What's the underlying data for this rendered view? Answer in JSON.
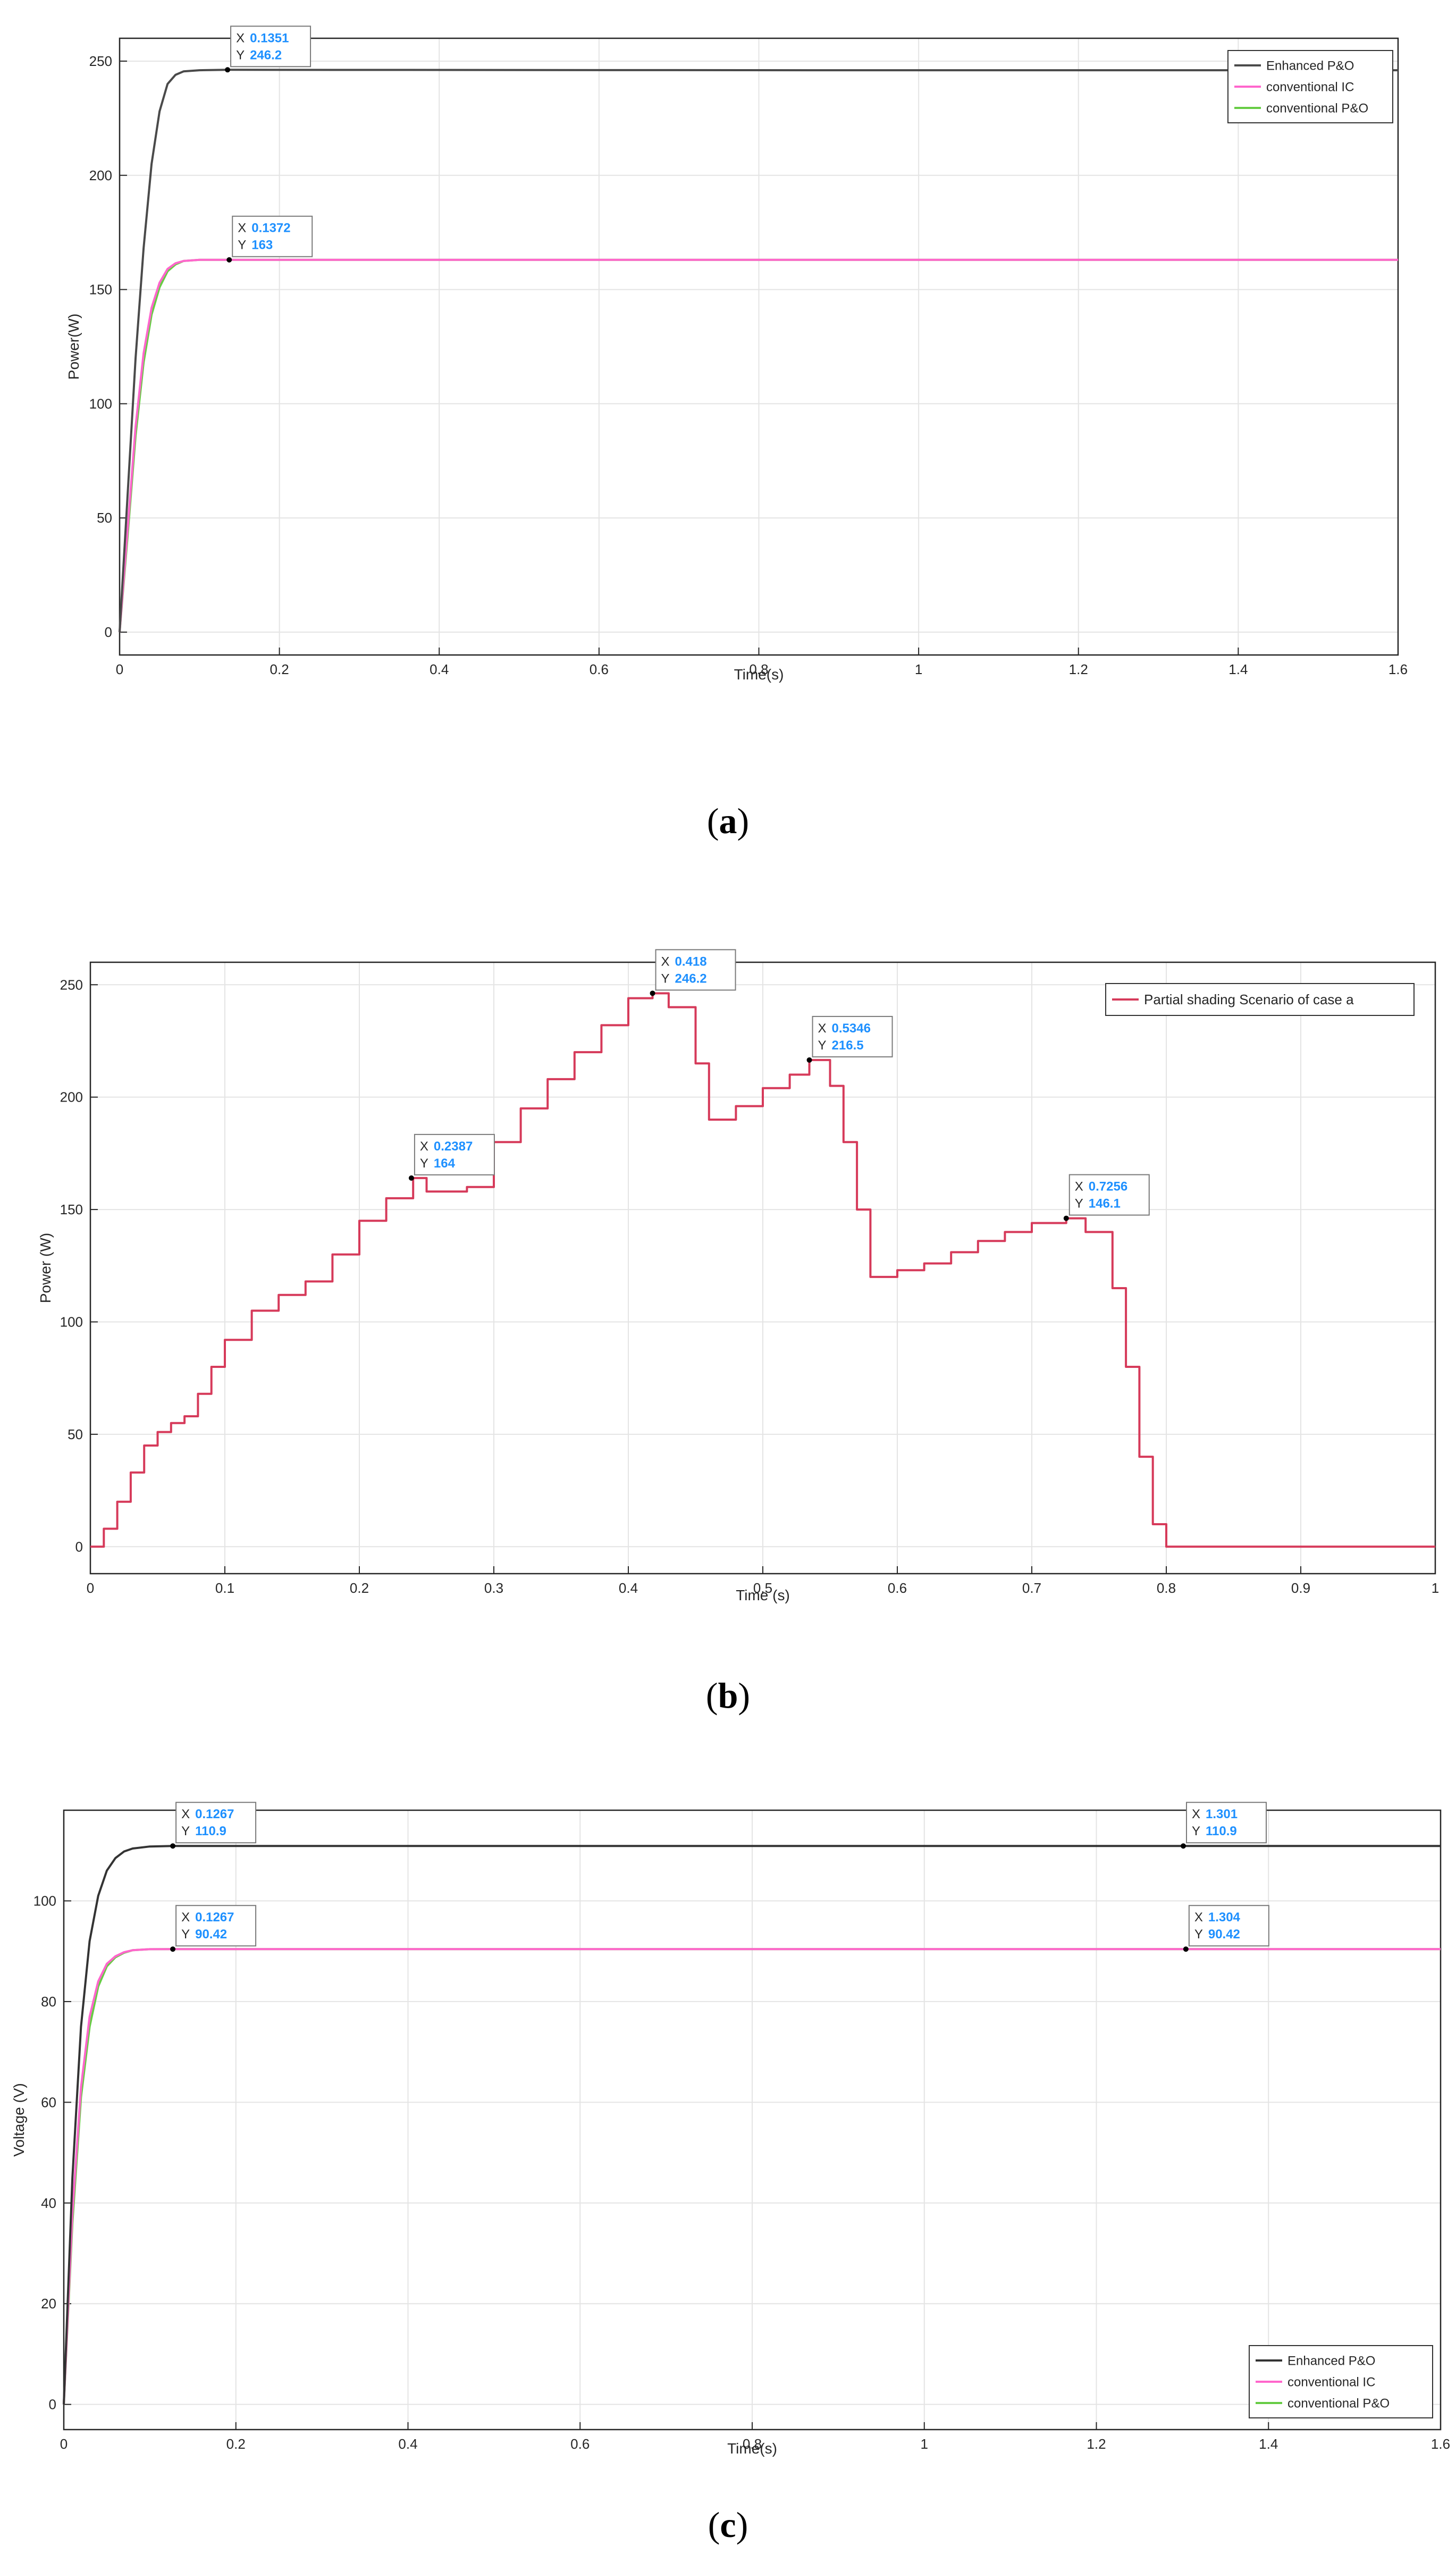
{
  "figures": [
    {
      "caption_open": "(",
      "caption_letter": "a",
      "caption_close": ")"
    },
    {
      "caption_open": "(",
      "caption_letter": "b",
      "caption_close": ")"
    },
    {
      "caption_open": "(",
      "caption_letter": "c",
      "caption_close": ")"
    }
  ],
  "chart_data": [
    {
      "type": "line",
      "title": "",
      "xlabel": "Time(s)",
      "ylabel": "Power(W)",
      "xlim": [
        0,
        1.6
      ],
      "ylim": [
        -10,
        260
      ],
      "xticks": [
        0,
        0.2,
        0.4,
        0.6,
        0.8,
        1,
        1.2,
        1.4,
        1.6
      ],
      "xtick_labels": [
        "0",
        "0.2",
        "0.4",
        "0.6",
        "0.8",
        "1",
        "1.2",
        "1.4",
        "1.6"
      ],
      "yticks": [
        0,
        50,
        100,
        150,
        200,
        250
      ],
      "ytick_labels": [
        "0",
        "50",
        "100",
        "150",
        "200",
        "250"
      ],
      "grid": true,
      "legend_position": "top-right",
      "series": [
        {
          "name": "Enhanced P&O",
          "color": "#4a4a4a",
          "x": [
            0,
            0.01,
            0.02,
            0.03,
            0.04,
            0.05,
            0.06,
            0.07,
            0.08,
            0.1,
            0.1351,
            0.9,
            1.6
          ],
          "y": [
            0,
            60,
            120,
            168,
            205,
            228,
            240,
            244,
            245.5,
            246,
            246.2,
            246,
            246
          ]
        },
        {
          "name": "conventional IC",
          "color": "#ff66cc",
          "x": [
            0,
            0.01,
            0.02,
            0.03,
            0.04,
            0.05,
            0.06,
            0.07,
            0.08,
            0.1,
            0.1372,
            1.6
          ],
          "y": [
            0,
            45,
            90,
            122,
            142,
            153,
            159,
            161.5,
            162.5,
            163,
            163,
            163
          ]
        },
        {
          "name": "conventional P&O",
          "color": "#66cc44",
          "x": [
            0,
            0.01,
            0.02,
            0.03,
            0.04,
            0.05,
            0.06,
            0.07,
            0.08,
            0.1,
            0.1372,
            1.6
          ],
          "y": [
            0,
            42,
            86,
            118,
            139,
            151,
            158,
            161,
            162.5,
            163,
            163,
            163
          ]
        }
      ],
      "annotations": [
        {
          "x": 0.1351,
          "y": 246.2,
          "x_label": "X",
          "x_text": "0.1351",
          "y_label": "Y",
          "y_text": "246.2"
        },
        {
          "x": 0.1372,
          "y": 163,
          "x_label": "X",
          "x_text": "0.1372",
          "y_label": "Y",
          "y_text": "163"
        }
      ]
    },
    {
      "type": "line",
      "title": "",
      "xlabel": "Time (s)",
      "ylabel": "Power (W)",
      "xlim": [
        0,
        1
      ],
      "ylim": [
        -12,
        260
      ],
      "xticks": [
        0,
        0.1,
        0.2,
        0.3,
        0.4,
        0.5,
        0.6,
        0.7,
        0.8,
        0.9,
        1
      ],
      "xtick_labels": [
        "0",
        "0.1",
        "0.2",
        "0.3",
        "0.4",
        "0.5",
        "0.6",
        "0.7",
        "0.8",
        "0.9",
        "1"
      ],
      "yticks": [
        0,
        50,
        100,
        150,
        200,
        250
      ],
      "ytick_labels": [
        "0",
        "50",
        "100",
        "150",
        "200",
        "250"
      ],
      "grid": true,
      "legend_position": "top-right",
      "series": [
        {
          "name": "Partial shading Scenario of case a",
          "color": "#d63a5a",
          "x": [
            0,
            0.01,
            0.02,
            0.03,
            0.04,
            0.05,
            0.06,
            0.07,
            0.08,
            0.09,
            0.1,
            0.12,
            0.14,
            0.15,
            0.16,
            0.18,
            0.2,
            0.22,
            0.24,
            0.25,
            0.26,
            0.28,
            0.3,
            0.32,
            0.34,
            0.36,
            0.38,
            0.4,
            0.418,
            0.43,
            0.45,
            0.46,
            0.48,
            0.5,
            0.52,
            0.5346,
            0.55,
            0.56,
            0.57,
            0.58,
            0.6,
            0.62,
            0.64,
            0.66,
            0.68,
            0.7,
            0.7256,
            0.74,
            0.76,
            0.77,
            0.78,
            0.79,
            0.8,
            0.85,
            0.9,
            0.95,
            1
          ],
          "y": [
            0,
            8,
            20,
            33,
            45,
            51,
            55,
            58,
            68,
            80,
            92,
            105,
            112,
            112,
            118,
            130,
            145,
            155,
            164,
            158,
            158,
            160,
            180,
            195,
            208,
            220,
            232,
            244,
            246.2,
            240,
            215,
            190,
            196,
            204,
            210,
            216.5,
            205,
            180,
            150,
            120,
            123,
            126,
            131,
            136,
            140,
            144,
            146.1,
            140,
            115,
            80,
            40,
            10,
            0,
            0,
            0,
            0,
            0
          ]
        }
      ],
      "annotations": [
        {
          "x": 0.2387,
          "y": 164,
          "x_label": "X",
          "x_text": "0.2387",
          "y_label": "Y",
          "y_text": "164"
        },
        {
          "x": 0.418,
          "y": 246.2,
          "x_label": "X",
          "x_text": "0.418",
          "y_label": "Y",
          "y_text": "246.2"
        },
        {
          "x": 0.5346,
          "y": 216.5,
          "x_label": "X",
          "x_text": "0.5346",
          "y_label": "Y",
          "y_text": "216.5"
        },
        {
          "x": 0.7256,
          "y": 146.1,
          "x_label": "X",
          "x_text": "0.7256",
          "y_label": "Y",
          "y_text": "146.1"
        }
      ]
    },
    {
      "type": "line",
      "title": "",
      "xlabel": "Time(s)",
      "ylabel": "Voltage (V)",
      "xlim": [
        0,
        1.6
      ],
      "ylim": [
        -5,
        118
      ],
      "xticks": [
        0,
        0.2,
        0.4,
        0.6,
        0.8,
        1,
        1.2,
        1.4,
        1.6
      ],
      "xtick_labels": [
        "0",
        "0.2",
        "0.4",
        "0.6",
        "0.8",
        "1",
        "1.2",
        "1.4",
        "1.6"
      ],
      "yticks": [
        0,
        20,
        40,
        60,
        80,
        100
      ],
      "ytick_labels": [
        "0",
        "20",
        "40",
        "60",
        "80",
        "100"
      ],
      "grid": true,
      "legend_position": "bottom-right",
      "series": [
        {
          "name": "Enhanced P&O",
          "color": "#333333",
          "x": [
            0,
            0.01,
            0.02,
            0.03,
            0.04,
            0.05,
            0.06,
            0.07,
            0.08,
            0.1,
            0.1267,
            1.3,
            1.6
          ],
          "y": [
            0,
            45,
            75,
            92,
            101,
            106,
            108.5,
            109.8,
            110.4,
            110.8,
            110.9,
            110.9,
            110.9
          ]
        },
        {
          "name": "conventional IC",
          "color": "#ff66cc",
          "x": [
            0,
            0.01,
            0.02,
            0.03,
            0.04,
            0.05,
            0.06,
            0.07,
            0.08,
            0.1,
            0.1267,
            1.6
          ],
          "y": [
            0,
            38,
            63,
            77,
            84,
            87.5,
            89,
            89.8,
            90.2,
            90.4,
            90.42,
            90.42
          ]
        },
        {
          "name": "conventional P&O",
          "color": "#66cc44",
          "x": [
            0,
            0.01,
            0.02,
            0.03,
            0.04,
            0.05,
            0.06,
            0.07,
            0.08,
            0.1,
            0.1267,
            1.6
          ],
          "y": [
            0,
            36,
            61,
            75,
            83,
            87,
            88.8,
            89.7,
            90.2,
            90.4,
            90.42,
            90.42
          ]
        }
      ],
      "annotations": [
        {
          "x": 0.1267,
          "y": 110.9,
          "x_label": "X",
          "x_text": "0.1267",
          "y_label": "Y",
          "y_text": "110.9"
        },
        {
          "x": 1.301,
          "y": 110.9,
          "x_label": "X",
          "x_text": "1.301",
          "y_label": "Y",
          "y_text": "110.9"
        },
        {
          "x": 0.1267,
          "y": 90.42,
          "x_label": "X",
          "x_text": "0.1267",
          "y_label": "Y",
          "y_text": "90.42"
        },
        {
          "x": 1.304,
          "y": 90.42,
          "x_label": "X",
          "x_text": "1.304",
          "y_label": "Y",
          "y_text": "90.42"
        }
      ]
    }
  ]
}
